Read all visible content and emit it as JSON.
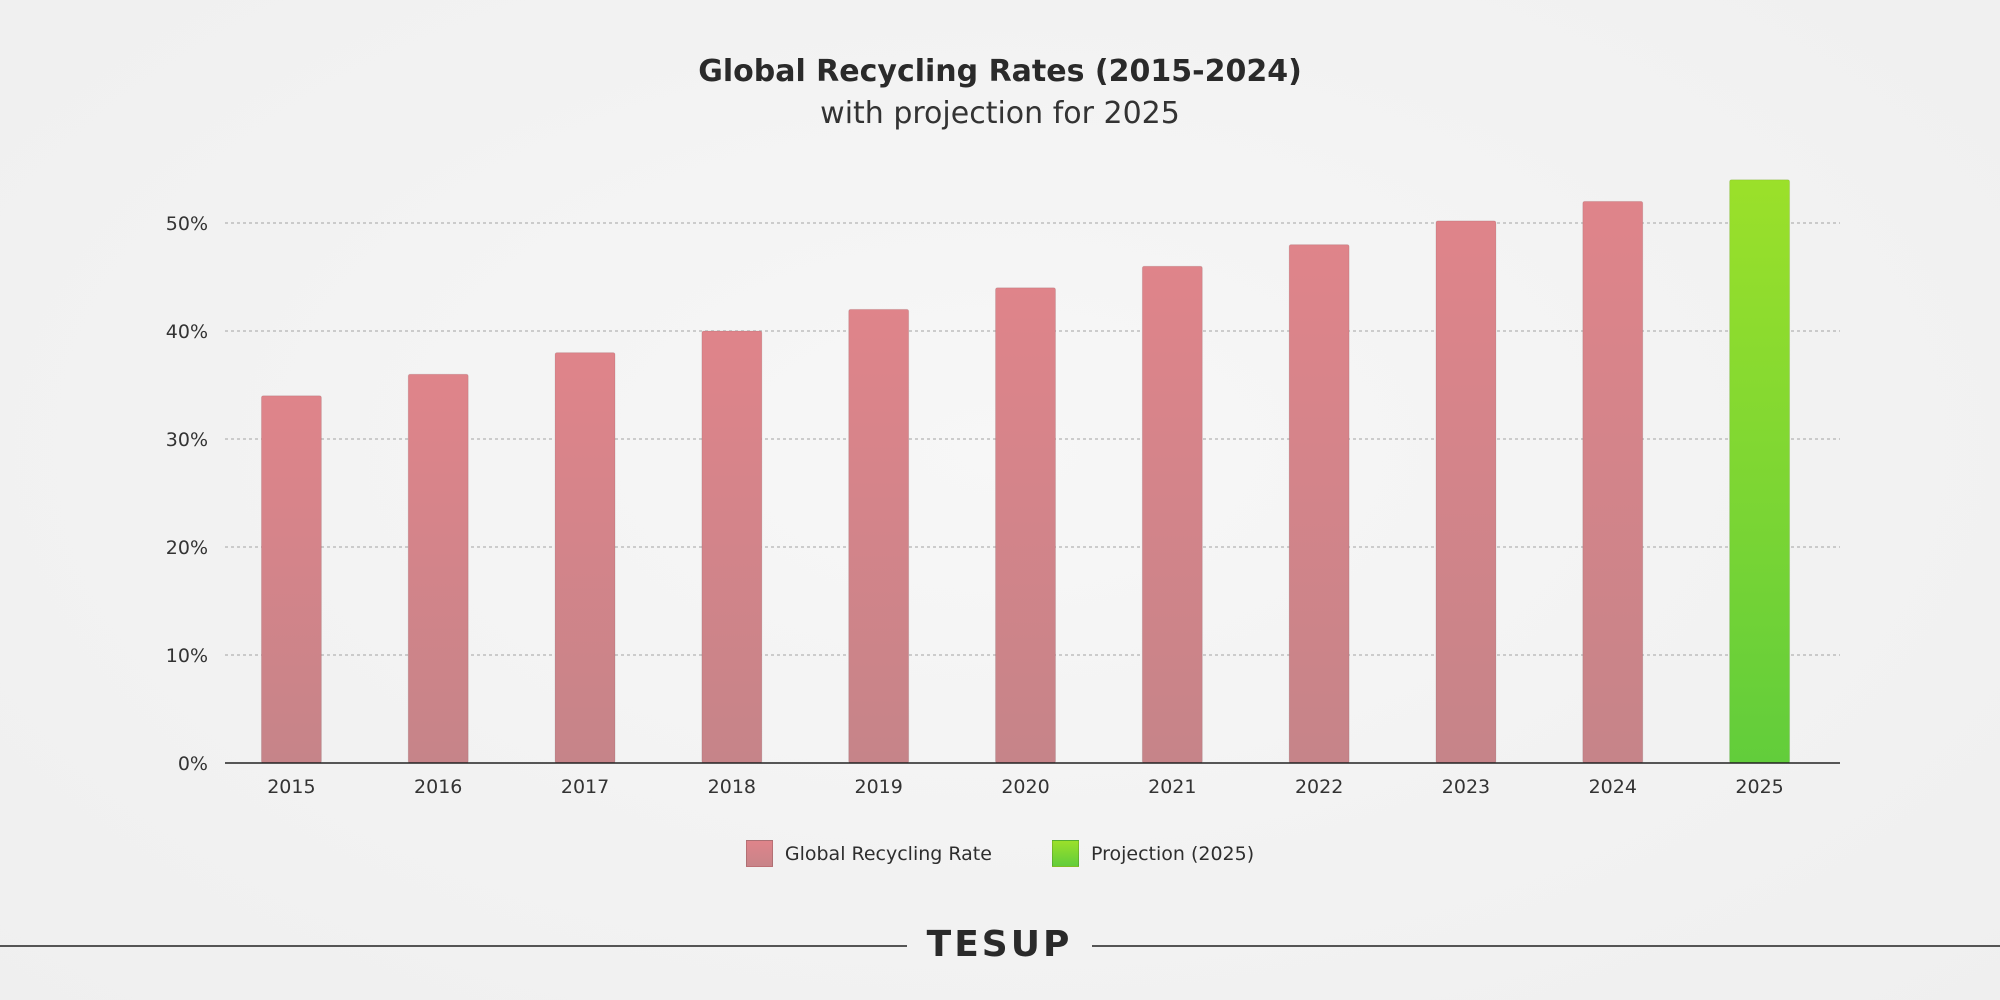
{
  "chart_data": {
    "type": "bar",
    "title": "Global Recycling Rates (2015-2024)",
    "subtitle": "with projection for 2025",
    "categories": [
      "2015",
      "2016",
      "2017",
      "2018",
      "2019",
      "2020",
      "2021",
      "2022",
      "2023",
      "2024",
      "2025"
    ],
    "series": [
      {
        "name": "Global Recycling Rate",
        "color_top": "#df848a",
        "color_bottom": "#c68489",
        "values": [
          34,
          36,
          38,
          40,
          42,
          44,
          46,
          48,
          50.2,
          52,
          null
        ]
      },
      {
        "name": "Projection (2025)",
        "color_top": "#9be02a",
        "color_bottom": "#62cd3b",
        "values": [
          null,
          null,
          null,
          null,
          null,
          null,
          null,
          null,
          null,
          null,
          54
        ]
      }
    ],
    "y_ticks": [
      "0%",
      "10%",
      "20%",
      "30%",
      "40%",
      "50%"
    ],
    "y_tick_values": [
      0,
      10,
      20,
      30,
      40,
      50
    ],
    "ylim": [
      0,
      54
    ],
    "xlabel": "",
    "ylabel": "",
    "grid": "horizontal dashed",
    "legend_position": "bottom-center"
  },
  "legend": {
    "actual_label": "Global Recycling Rate",
    "projection_label": "Projection (2025)"
  },
  "footer": {
    "logo_text": "TESUP"
  }
}
